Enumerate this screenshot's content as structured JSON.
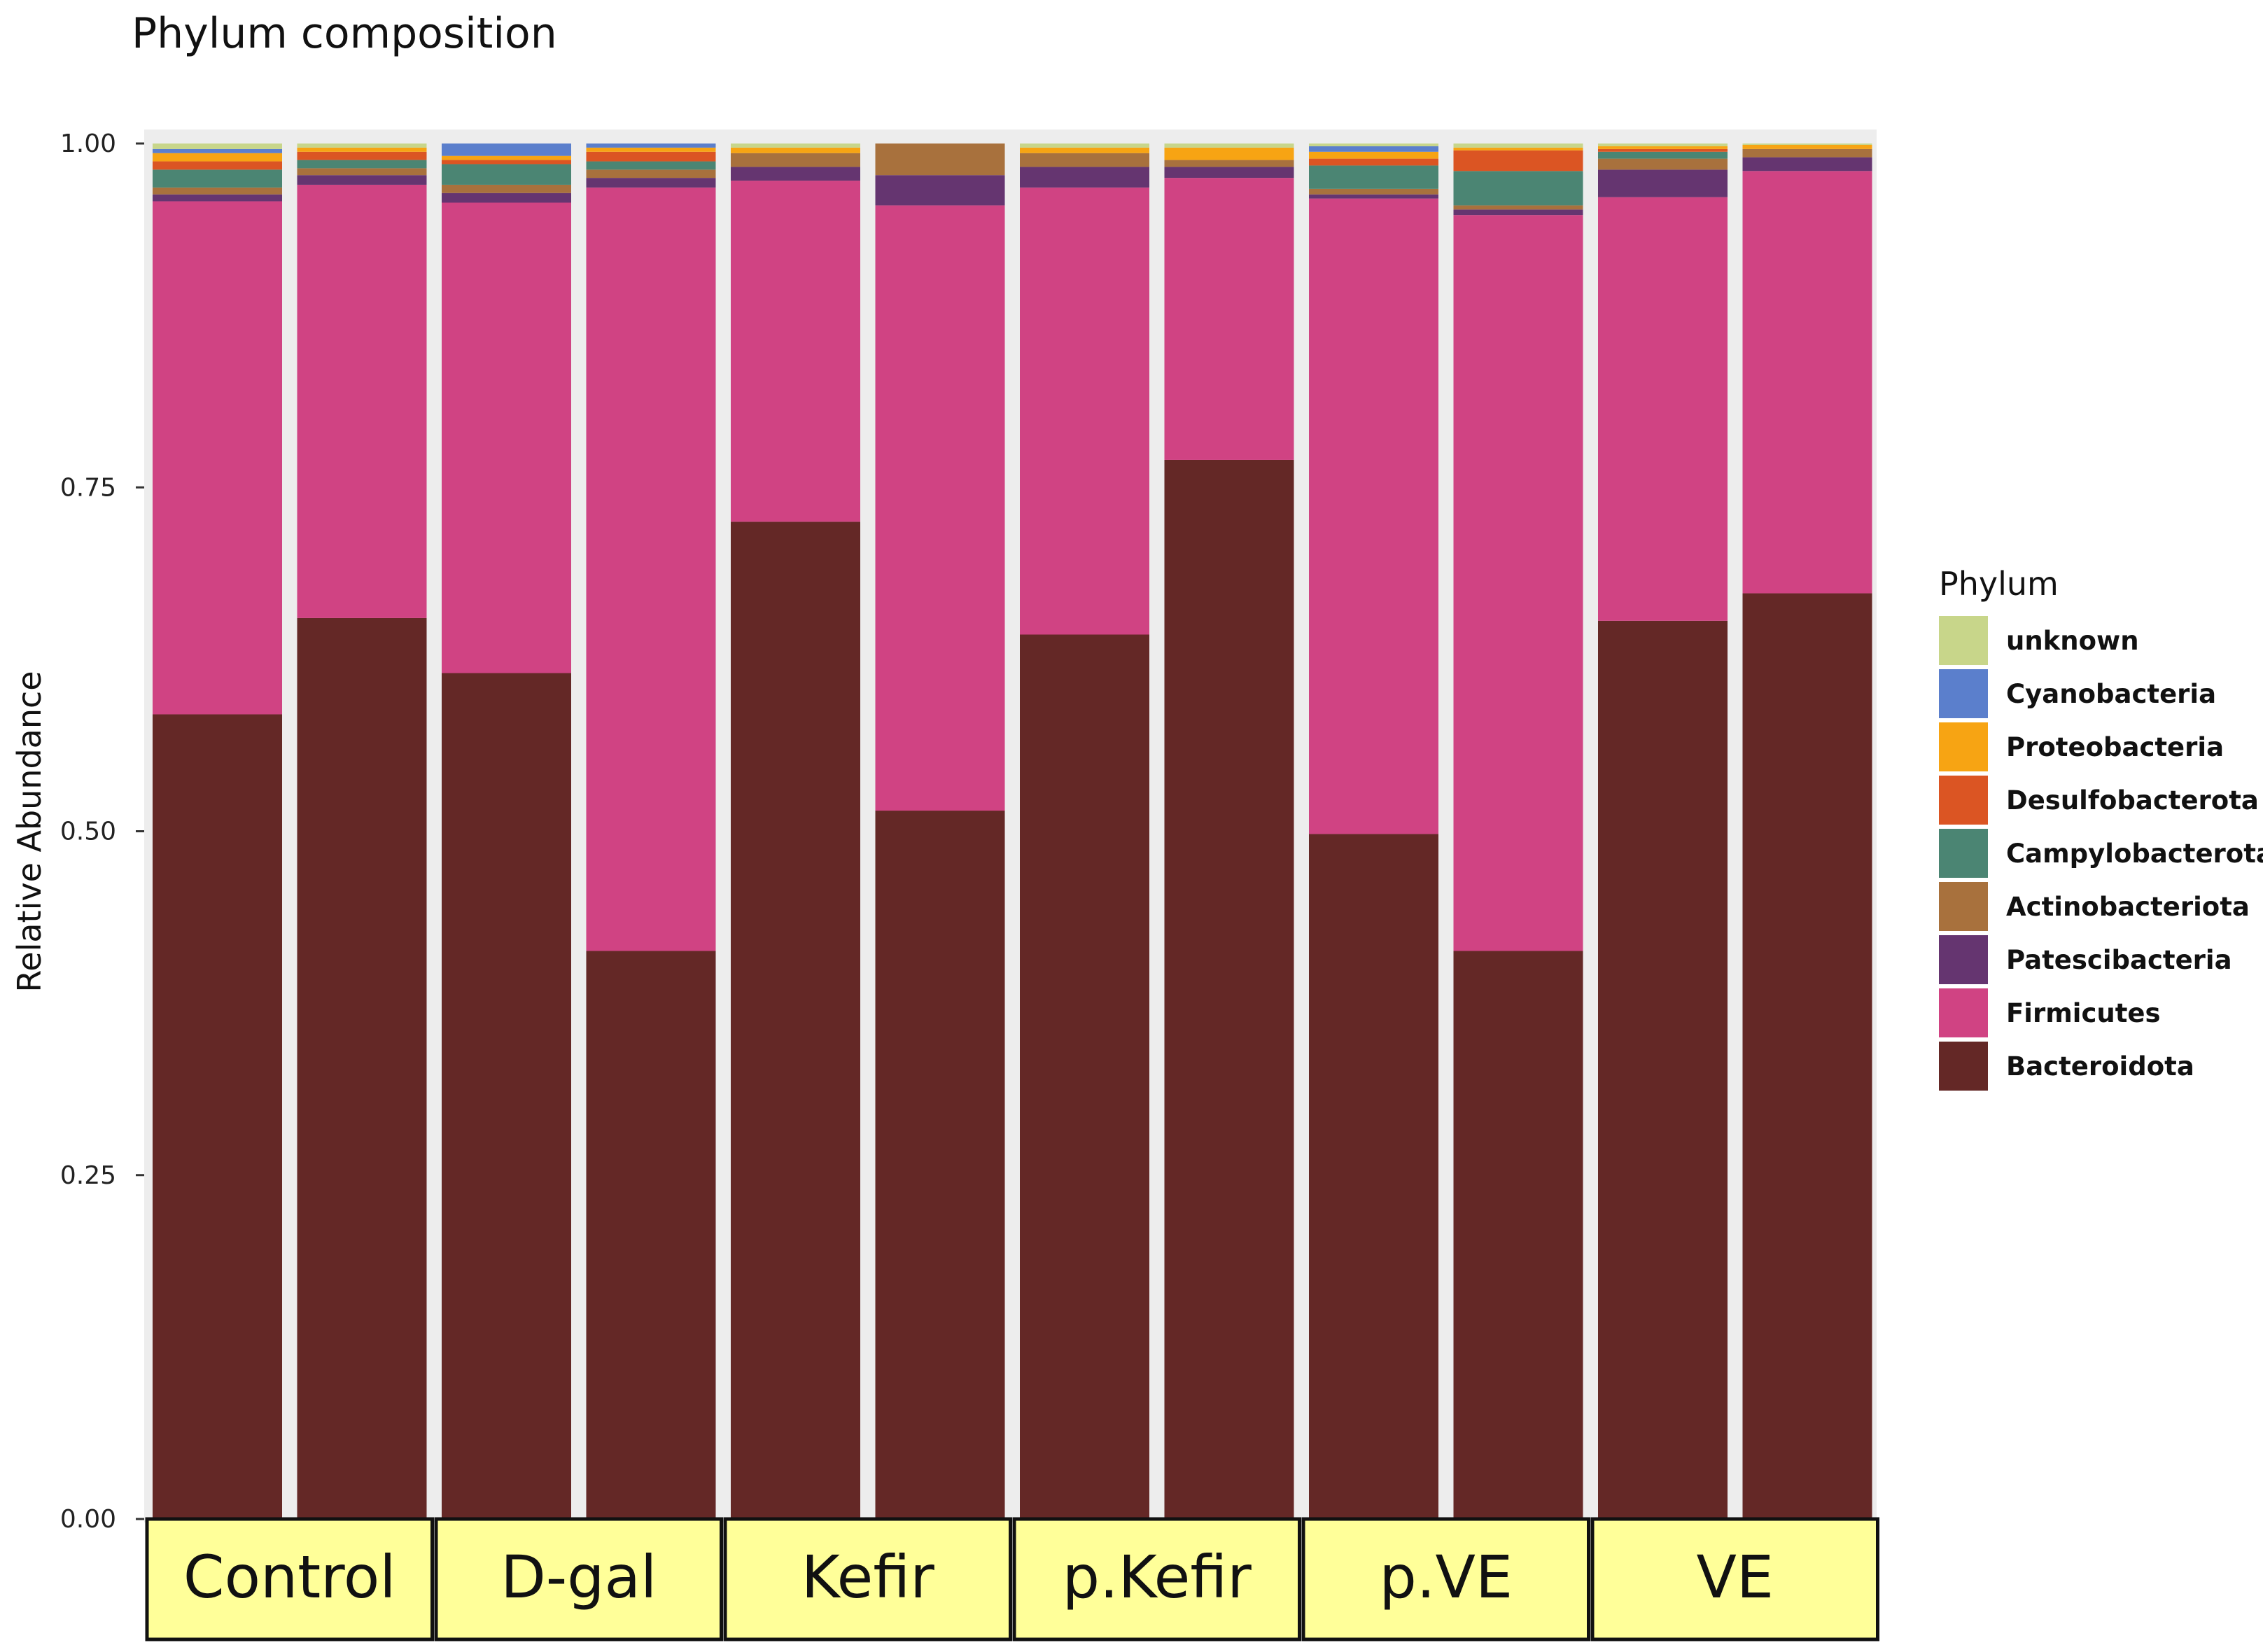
{
  "chart_data": {
    "type": "bar",
    "stacked": true,
    "title": "Phylum composition",
    "xlabel": "",
    "ylabel": "Relative Abundance",
    "ylim": [
      0,
      1
    ],
    "yticks": [
      "0.00",
      "0.25",
      "0.50",
      "0.75",
      "1.00"
    ],
    "ytick_values": [
      0,
      0.25,
      0.5,
      0.75,
      1.0
    ],
    "grid": false,
    "legend": {
      "title": "Phylum",
      "placement": "right",
      "entries": [
        "unknown",
        "Cyanobacteria",
        "Proteobacteria",
        "Desulfobacterota",
        "Campylobacterota",
        "Actinobacteriota",
        "Patescibacteria",
        "Firmicutes",
        "Bacteroidota"
      ]
    },
    "groups": [
      {
        "label": "Control",
        "samples": 2
      },
      {
        "label": "D-gal",
        "samples": 2
      },
      {
        "label": "Kefir",
        "samples": 2
      },
      {
        "label": "p.Kefir",
        "samples": 2
      },
      {
        "label": "p.VE",
        "samples": 2
      },
      {
        "label": "VE",
        "samples": 2
      }
    ],
    "stack_order": [
      "Bacteroidota",
      "Firmicutes",
      "Patescibacteria",
      "Actinobacteriota",
      "Campylobacterota",
      "Desulfobacterota",
      "Proteobacteria",
      "Cyanobacteria",
      "unknown"
    ],
    "colors": {
      "unknown": "#c8d68a",
      "Cyanobacteria": "#5b7fcc",
      "Proteobacteria": "#f7a413",
      "Desulfobacterota": "#db5523",
      "Campylobacterota": "#4b8573",
      "Actinobacteriota": "#a8713d",
      "Patescibacteria": "#653570",
      "Firmicutes": "#d04383",
      "Bacteroidota": "#642826"
    },
    "series": [
      {
        "name": "Bacteroidota",
        "values": [
          0.585,
          0.655,
          0.615,
          0.413,
          0.725,
          0.515,
          0.643,
          0.77,
          0.498,
          0.413,
          0.653,
          0.673
        ]
      },
      {
        "name": "Firmicutes",
        "values": [
          0.373,
          0.315,
          0.342,
          0.555,
          0.248,
          0.44,
          0.325,
          0.205,
          0.462,
          0.535,
          0.308,
          0.307
        ]
      },
      {
        "name": "Patescibacteria",
        "values": [
          0.005,
          0.007,
          0.007,
          0.007,
          0.01,
          0.022,
          0.015,
          0.008,
          0.003,
          0.004,
          0.02,
          0.01
        ]
      },
      {
        "name": "Actinobacteriota",
        "values": [
          0.005,
          0.005,
          0.006,
          0.006,
          0.01,
          0.023,
          0.01,
          0.005,
          0.004,
          0.003,
          0.008,
          0.006
        ]
      },
      {
        "name": "Campylobacterota",
        "values": [
          0.013,
          0.006,
          0.015,
          0.006,
          0.0,
          0.0,
          0.0,
          0.0,
          0.017,
          0.025,
          0.005,
          0.0
        ]
      },
      {
        "name": "Desulfobacterota",
        "values": [
          0.006,
          0.006,
          0.003,
          0.007,
          0.0,
          0.0,
          0.0,
          0.0,
          0.005,
          0.015,
          0.002,
          0.0
        ]
      },
      {
        "name": "Proteobacteria",
        "values": [
          0.006,
          0.003,
          0.003,
          0.003,
          0.004,
          0.0,
          0.004,
          0.009,
          0.005,
          0.002,
          0.002,
          0.003
        ]
      },
      {
        "name": "Cyanobacteria",
        "values": [
          0.003,
          0.0,
          0.009,
          0.003,
          0.0,
          0.0,
          0.0,
          0.0,
          0.004,
          0.0,
          0.0,
          0.0
        ]
      },
      {
        "name": "unknown",
        "values": [
          0.004,
          0.003,
          0.0,
          0.0,
          0.003,
          0.0,
          0.003,
          0.003,
          0.002,
          0.003,
          0.002,
          0.001
        ]
      }
    ]
  }
}
